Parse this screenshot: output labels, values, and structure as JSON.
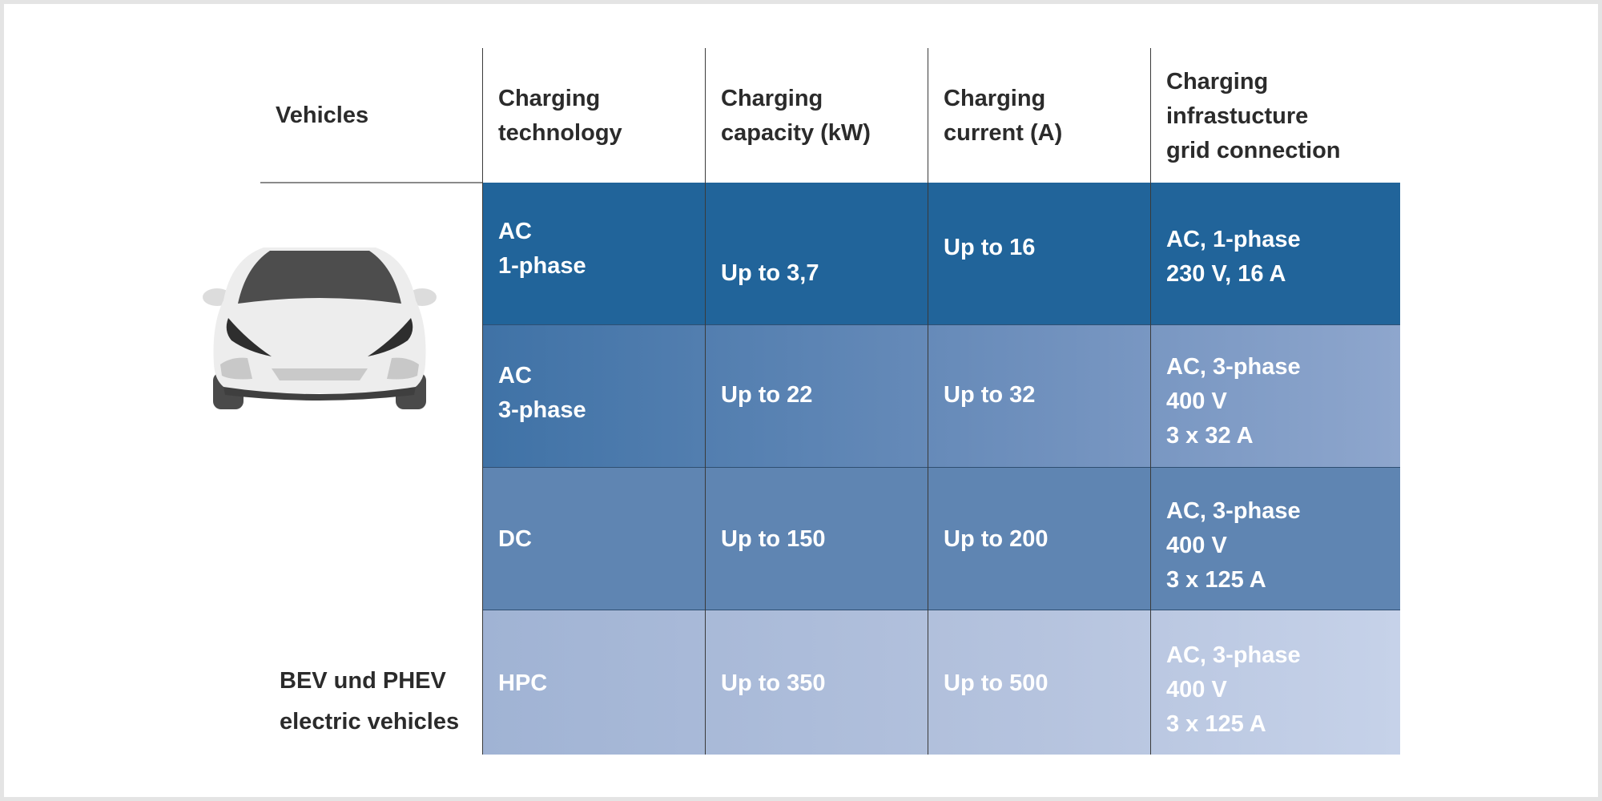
{
  "headers": {
    "vehicles": "Vehicles",
    "technology": "Charging\ntechnology",
    "capacity": "Charging\ncapacity (kW)",
    "current": "Charging\ncurrent (A)",
    "grid": "Charging\ninfrastucture\ngrid connection"
  },
  "vehicle_label": {
    "line1": "BEV und PHEV",
    "line2": "electric vehicles"
  },
  "rows": [
    {
      "technology": "AC\n1-phase",
      "capacity": "Up to 3,7",
      "current": "Up to 16",
      "grid": "AC, 1-phase\n230 V, 16 A"
    },
    {
      "technology": "AC\n3-phase",
      "capacity": "Up to 22",
      "current": "Up to 32",
      "grid": "AC, 3-phase\n400 V\n3 x 32 A"
    },
    {
      "technology": "DC",
      "capacity": "Up to 150",
      "current": "Up to 200",
      "grid": "AC, 3-phase\n400 V\n3 x 125 A"
    },
    {
      "technology": "HPC",
      "capacity": "Up to 350",
      "current": "Up to 500",
      "grid": "AC, 3-phase\n400 V\n3 x 125 A"
    }
  ],
  "icons": {
    "vehicle": "car-front-icon"
  },
  "colors": {
    "row1": "#21649a",
    "row2_start": "#3f72a6",
    "row2_end": "#8ea6cd",
    "row3": "#5f85b2",
    "row4_start": "#a0b3d4",
    "row4_end": "#c6d2e9"
  }
}
